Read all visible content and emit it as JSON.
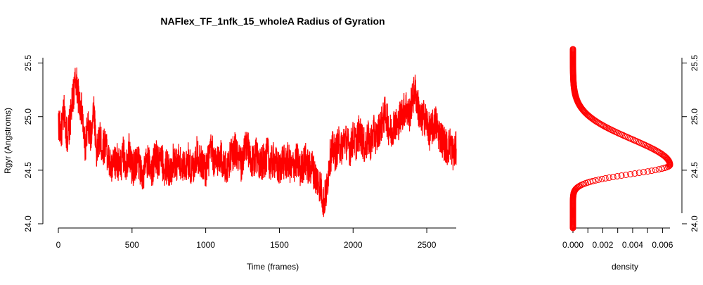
{
  "chart_data": [
    {
      "type": "line",
      "title": "NAFlex_TF_1nfk_15_wholeA Radius of Gyration",
      "xlabel": "Time (frames)",
      "ylabel": "Rgyr (Angstroms)",
      "xlim": [
        0,
        2700
      ],
      "ylim": [
        24.0,
        25.55
      ],
      "xticks": [
        0,
        500,
        1000,
        1500,
        2000,
        2500
      ],
      "yticks": [
        24.0,
        24.5,
        25.0,
        25.5
      ],
      "color": "#ff0000",
      "grid": false,
      "series": [
        {
          "x": [
            0,
            20,
            40,
            60,
            80,
            100,
            120,
            140,
            160,
            180,
            200,
            220,
            240,
            260,
            280,
            300,
            320,
            340,
            360,
            380,
            400,
            420,
            440,
            460,
            480,
            500,
            520,
            540,
            560,
            580,
            600,
            620,
            640,
            660,
            680,
            700,
            720,
            740,
            760,
            780,
            800,
            820,
            840,
            860,
            880,
            900,
            920,
            940,
            960,
            980,
            1000,
            1020,
            1040,
            1060,
            1080,
            1100,
            1120,
            1140,
            1160,
            1180,
            1200,
            1220,
            1240,
            1260,
            1280,
            1300,
            1320,
            1340,
            1360,
            1380,
            1400,
            1420,
            1440,
            1460,
            1480,
            1500,
            1520,
            1540,
            1560,
            1580,
            1600,
            1620,
            1640,
            1660,
            1680,
            1700,
            1720,
            1740,
            1760,
            1780,
            1800,
            1820,
            1840,
            1860,
            1880,
            1900,
            1920,
            1940,
            1960,
            1980,
            2000,
            2020,
            2040,
            2060,
            2080,
            2100,
            2120,
            2140,
            2160,
            2180,
            2200,
            2220,
            2240,
            2260,
            2280,
            2300,
            2320,
            2340,
            2360,
            2380,
            2400,
            2420,
            2440,
            2460,
            2480,
            2500,
            2520,
            2540,
            2560,
            2580,
            2600,
            2620,
            2640,
            2660,
            2680,
            2700
          ],
          "values": [
            24.95,
            24.85,
            25.05,
            24.8,
            24.95,
            25.2,
            25.35,
            25.15,
            25.05,
            24.7,
            24.9,
            24.8,
            25.1,
            24.65,
            24.8,
            24.7,
            24.75,
            24.6,
            24.5,
            24.55,
            24.6,
            24.5,
            24.65,
            24.55,
            24.7,
            24.5,
            24.55,
            24.6,
            24.5,
            24.45,
            24.6,
            24.55,
            24.5,
            24.65,
            24.55,
            24.6,
            24.5,
            24.55,
            24.45,
            24.6,
            24.55,
            24.6,
            24.5,
            24.55,
            24.6,
            24.5,
            24.55,
            24.65,
            24.6,
            24.55,
            24.5,
            24.6,
            24.7,
            24.55,
            24.6,
            24.65,
            24.55,
            24.5,
            24.6,
            24.65,
            24.7,
            24.6,
            24.55,
            24.65,
            24.75,
            24.6,
            24.55,
            24.65,
            24.6,
            24.55,
            24.6,
            24.65,
            24.55,
            24.6,
            24.55,
            24.5,
            24.6,
            24.55,
            24.6,
            24.5,
            24.55,
            24.6,
            24.5,
            24.55,
            24.6,
            24.5,
            24.55,
            24.45,
            24.4,
            24.35,
            24.2,
            24.3,
            24.6,
            24.7,
            24.65,
            24.75,
            24.7,
            24.8,
            24.75,
            24.7,
            24.8,
            24.75,
            24.85,
            24.8,
            24.7,
            24.8,
            24.75,
            24.85,
            24.8,
            24.9,
            24.95,
            25.05,
            24.9,
            24.85,
            24.95,
            24.9,
            25.0,
            25.05,
            25.1,
            25.0,
            25.15,
            25.25,
            25.1,
            24.95,
            25.0,
            24.95,
            24.85,
            24.9,
            24.95,
            24.85,
            24.8,
            24.75,
            24.7,
            24.75,
            24.65,
            24.7
          ]
        }
      ]
    },
    {
      "type": "scatter",
      "xlabel": "density",
      "xlim": [
        0,
        0.0065
      ],
      "ylim": [
        24.0,
        25.55
      ],
      "xticks": [
        0.0,
        0.002,
        0.004,
        0.006
      ],
      "xtick_labels": [
        "0.000",
        "0.002",
        "0.004",
        "0.006"
      ],
      "yticks": [
        24.0,
        24.5,
        25.0,
        25.5
      ],
      "color": "#ff0000",
      "peak_density": 0.0065,
      "peak_rgyr": 24.55,
      "rgyr_range": [
        23.96,
        25.63
      ]
    }
  ]
}
